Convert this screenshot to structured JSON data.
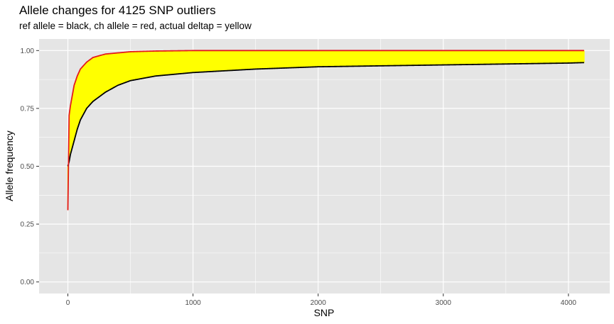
{
  "chart_data": {
    "type": "line",
    "title": "Allele changes for 4125 SNP outliers",
    "subtitle": "ref allele = black, ch allele = red, actual deltap = yellow",
    "xlabel": "SNP",
    "ylabel": "Allele frequency",
    "xlim": [
      -230,
      4330
    ],
    "ylim": [
      -0.05,
      1.05
    ],
    "xticks": [
      0,
      1000,
      2000,
      3000,
      4000
    ],
    "yticks": [
      0.0,
      0.25,
      0.5,
      0.75,
      1.0
    ],
    "ytick_labels": [
      "0.00",
      "0.25",
      "0.50",
      "0.75",
      "1.00"
    ],
    "grid": true,
    "colors": {
      "panel_bg": "#e5e5e5",
      "grid": "#ffffff",
      "ref": "#000000",
      "ch": "#e41a1c",
      "deltap": "#ffff00"
    },
    "n_points": 4125,
    "series": [
      {
        "name": "ref allele",
        "color": "black",
        "x": [
          0,
          10,
          20,
          30,
          40,
          50,
          75,
          100,
          150,
          200,
          300,
          400,
          500,
          700,
          1000,
          1500,
          2000,
          3000,
          4000,
          4125
        ],
        "values": [
          0.5,
          0.52,
          0.55,
          0.57,
          0.59,
          0.61,
          0.66,
          0.7,
          0.75,
          0.78,
          0.82,
          0.85,
          0.87,
          0.89,
          0.905,
          0.92,
          0.93,
          0.938,
          0.946,
          0.948
        ]
      },
      {
        "name": "ch allele",
        "color": "red",
        "x": [
          0,
          10,
          20,
          30,
          40,
          50,
          75,
          100,
          150,
          200,
          300,
          400,
          500,
          700,
          1000,
          1500,
          2000,
          3000,
          4000,
          4125
        ],
        "values": [
          0.31,
          0.72,
          0.76,
          0.79,
          0.82,
          0.85,
          0.89,
          0.92,
          0.95,
          0.97,
          0.985,
          0.99,
          0.995,
          0.998,
          1.0,
          1.0,
          1.0,
          1.0,
          1.0,
          1.0
        ]
      }
    ]
  }
}
